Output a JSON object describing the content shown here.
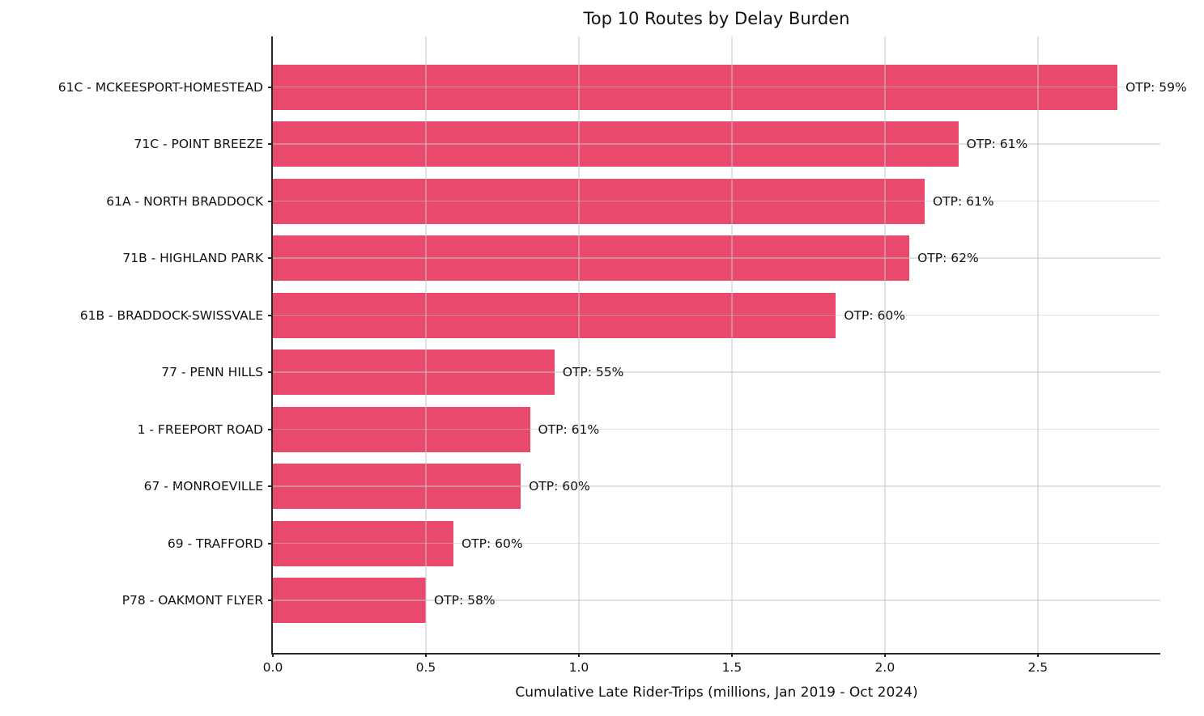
{
  "chart_data": {
    "type": "bar",
    "orientation": "horizontal",
    "title": "Top 10 Routes by Delay Burden",
    "xlabel": "Cumulative Late Rider-Trips (millions, Jan 2019 - Oct 2024)",
    "categories": [
      "61C - MCKEESPORT-HOMESTEAD",
      "71C - POINT BREEZE",
      "61A - NORTH BRADDOCK",
      "71B - HIGHLAND PARK",
      "61B - BRADDOCK-SWISSVALE",
      "77 - PENN HILLS",
      "1 - FREEPORT ROAD",
      "67 - MONROEVILLE",
      "69 - TRAFFORD",
      "P78 - OAKMONT FLYER"
    ],
    "values": [
      2.76,
      2.24,
      2.13,
      2.08,
      1.84,
      0.92,
      0.84,
      0.81,
      0.59,
      0.5
    ],
    "bar_labels": [
      "OTP: 59%",
      "OTP: 61%",
      "OTP: 61%",
      "OTP: 62%",
      "OTP: 60%",
      "OTP: 55%",
      "OTP: 61%",
      "OTP: 60%",
      "OTP: 60%",
      "OTP: 58%"
    ],
    "otp_percent": [
      59,
      61,
      61,
      62,
      60,
      55,
      61,
      60,
      60,
      58
    ],
    "x_tick_values": [
      0.0,
      0.5,
      1.0,
      1.5,
      2.0,
      2.5
    ],
    "x_tick_labels": [
      "0.0",
      "0.5",
      "1.0",
      "1.5",
      "2.0",
      "2.5"
    ],
    "xlim": [
      0,
      2.9
    ],
    "grid": true,
    "legend": "none",
    "bar_color": "#e8496c",
    "grid_color_over_white": "#e3e3e3",
    "grid_rgba": "rgba(198,198,198,0.5)",
    "axis_color": "#262626",
    "text_color": "#111111"
  }
}
